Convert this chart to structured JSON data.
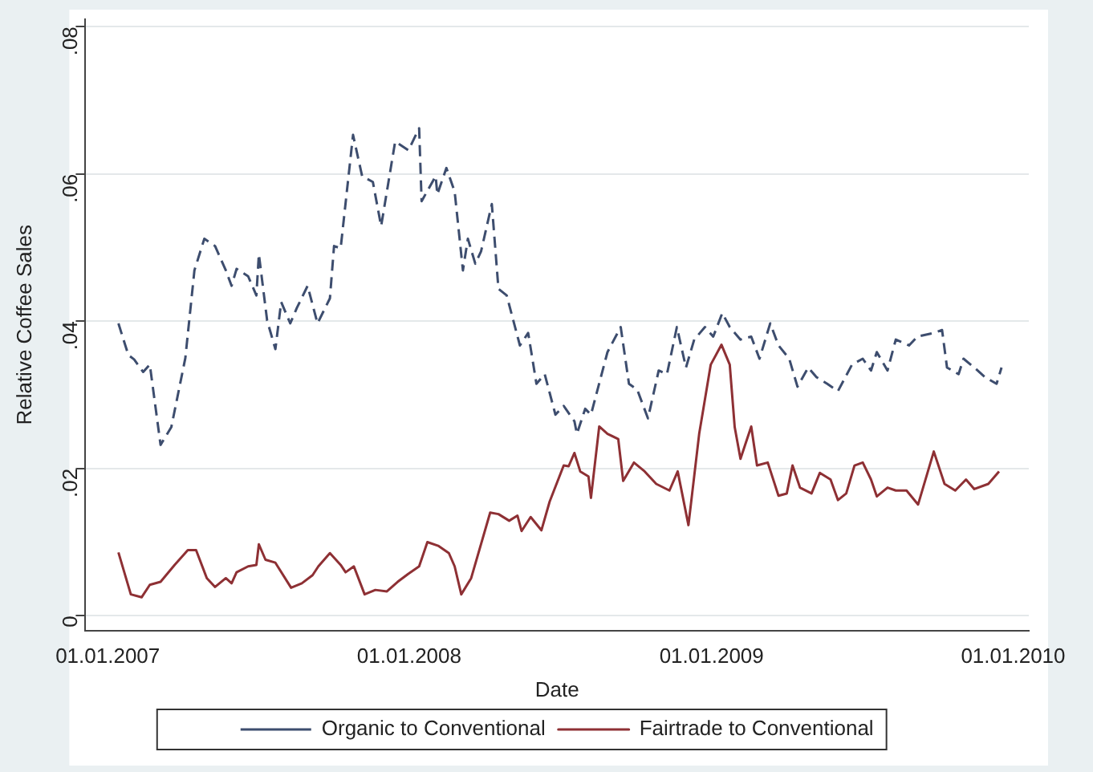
{
  "chart_data": {
    "type": "line",
    "xlabel": "Date",
    "ylabel": "Relative Coffee Sales",
    "xlim": [
      "2006-12-05",
      "2010-01-20"
    ],
    "ylim": [
      -0.002,
      0.081
    ],
    "xticks": [
      {
        "value": "2007-01-01",
        "label": "01.01.2007"
      },
      {
        "value": "2008-01-01",
        "label": "01.01.2008"
      },
      {
        "value": "2009-01-01",
        "label": "01.01.2009"
      },
      {
        "value": "2010-01-01",
        "label": "01.01.2010"
      }
    ],
    "yticks": [
      {
        "value": 0,
        "label": "0"
      },
      {
        "value": 0.02,
        "label": ".02"
      },
      {
        "value": 0.04,
        "label": ".04"
      },
      {
        "value": 0.06,
        "label": ".06"
      },
      {
        "value": 0.08,
        "label": ".08"
      }
    ],
    "grid": "y",
    "legend": "bottom",
    "marker": "none",
    "series": [
      {
        "name": "Organic to Conventional",
        "color": "#3d4d6e",
        "line_style": "dashed",
        "x": [
          "2007-01-14",
          "2007-01-26",
          "2007-02-02",
          "2007-02-13",
          "2007-02-21",
          "2007-03-06",
          "2007-03-19",
          "2007-04-05",
          "2007-04-16",
          "2007-04-28",
          "2007-05-11",
          "2007-05-24",
          "2007-05-31",
          "2007-06-06",
          "2007-06-20",
          "2007-06-30",
          "2007-07-03",
          "2007-07-13",
          "2007-07-23",
          "2007-07-30",
          "2007-08-10",
          "2007-08-18",
          "2007-08-31",
          "2007-09-12",
          "2007-09-27",
          "2007-10-02",
          "2007-10-10",
          "2007-10-25",
          "2007-11-05",
          "2007-11-18",
          "2007-11-28",
          "2007-12-15",
          "2007-12-31",
          "2008-01-13",
          "2008-01-16",
          "2008-02-02",
          "2008-02-04",
          "2008-02-15",
          "2008-02-25",
          "2008-03-06",
          "2008-03-12",
          "2008-03-21",
          "2008-03-28",
          "2008-04-10",
          "2008-04-18",
          "2008-04-28",
          "2008-05-14",
          "2008-05-24",
          "2008-06-03",
          "2008-06-13",
          "2008-06-26",
          "2008-07-06",
          "2008-07-19",
          "2008-07-22",
          "2008-08-01",
          "2008-08-08",
          "2008-08-28",
          "2008-09-13",
          "2008-09-23",
          "2008-10-03",
          "2008-10-16",
          "2008-10-29",
          "2008-11-08",
          "2008-11-20",
          "2008-12-01",
          "2008-12-11",
          "2008-12-24",
          "2009-01-03",
          "2009-01-14",
          "2009-01-23",
          "2009-02-05",
          "2009-02-18",
          "2009-02-28",
          "2009-03-13",
          "2009-03-23",
          "2009-04-05",
          "2009-04-15",
          "2009-04-28",
          "2009-05-08",
          "2009-05-21",
          "2009-06-03",
          "2009-06-20",
          "2009-07-03",
          "2009-07-13",
          "2009-07-20",
          "2009-08-02",
          "2009-08-12",
          "2009-08-28",
          "2009-09-07",
          "2009-09-27",
          "2009-10-07",
          "2009-10-13",
          "2009-10-27",
          "2009-11-02",
          "2009-11-15",
          "2009-11-28",
          "2009-12-12",
          "2009-12-18"
        ],
        "values": [
          0.0397,
          0.0354,
          0.0348,
          0.0331,
          0.0341,
          0.0232,
          0.0256,
          0.035,
          0.0469,
          0.0512,
          0.0502,
          0.0469,
          0.0448,
          0.0471,
          0.0461,
          0.0435,
          0.0491,
          0.0401,
          0.0362,
          0.0426,
          0.0397,
          0.0418,
          0.0448,
          0.0397,
          0.0431,
          0.0502,
          0.0499,
          0.0653,
          0.0597,
          0.0589,
          0.0529,
          0.0644,
          0.0632,
          0.0662,
          0.0563,
          0.0597,
          0.0572,
          0.0608,
          0.0576,
          0.0469,
          0.0512,
          0.0478,
          0.0495,
          0.0559,
          0.0444,
          0.0435,
          0.0367,
          0.0384,
          0.0315,
          0.0328,
          0.0273,
          0.0285,
          0.0264,
          0.0247,
          0.0281,
          0.0273,
          0.0358,
          0.0392,
          0.0315,
          0.0307,
          0.0268,
          0.0333,
          0.0328,
          0.0392,
          0.0337,
          0.0375,
          0.0392,
          0.0379,
          0.0411,
          0.0392,
          0.0375,
          0.0379,
          0.0349,
          0.0397,
          0.0367,
          0.0349,
          0.0311,
          0.0337,
          0.0324,
          0.0315,
          0.0305,
          0.0341,
          0.0349,
          0.0333,
          0.0358,
          0.0333,
          0.0375,
          0.0367,
          0.0379,
          0.0384,
          0.0388,
          0.0337,
          0.0328,
          0.0349,
          0.0337,
          0.0324,
          0.0315,
          0.0337
        ]
      },
      {
        "name": "Fairtrade to Conventional",
        "color": "#8e3034",
        "line_style": "solid",
        "x": [
          "2007-01-14",
          "2007-01-29",
          "2007-02-11",
          "2007-02-21",
          "2007-03-06",
          "2007-03-23",
          "2007-04-08",
          "2007-04-18",
          "2007-05-01",
          "2007-05-11",
          "2007-05-24",
          "2007-05-31",
          "2007-06-06",
          "2007-06-20",
          "2007-06-30",
          "2007-07-03",
          "2007-07-11",
          "2007-07-23",
          "2007-08-11",
          "2007-08-24",
          "2007-09-06",
          "2007-09-13",
          "2007-09-27",
          "2007-10-10",
          "2007-10-16",
          "2007-10-26",
          "2007-11-08",
          "2007-11-21",
          "2007-12-05",
          "2007-12-18",
          "2007-12-31",
          "2008-01-13",
          "2008-01-23",
          "2008-02-05",
          "2008-02-18",
          "2008-02-25",
          "2008-03-04",
          "2008-03-16",
          "2008-04-08",
          "2008-04-18",
          "2008-05-01",
          "2008-05-11",
          "2008-05-16",
          "2008-05-27",
          "2008-06-09",
          "2008-06-19",
          "2008-07-06",
          "2008-07-12",
          "2008-07-19",
          "2008-07-26",
          "2008-08-05",
          "2008-08-08",
          "2008-08-18",
          "2008-08-28",
          "2008-09-10",
          "2008-09-16",
          "2008-09-29",
          "2008-10-12",
          "2008-10-26",
          "2008-11-11",
          "2008-11-21",
          "2008-12-04",
          "2008-12-17",
          "2008-12-31",
          "2009-01-13",
          "2009-01-23",
          "2009-01-29",
          "2009-02-05",
          "2009-02-18",
          "2009-02-25",
          "2009-03-10",
          "2009-03-23",
          "2009-04-02",
          "2009-04-09",
          "2009-04-18",
          "2009-05-02",
          "2009-05-12",
          "2009-05-25",
          "2009-06-03",
          "2009-06-13",
          "2009-06-23",
          "2009-07-03",
          "2009-07-13",
          "2009-07-20",
          "2009-08-02",
          "2009-08-12",
          "2009-08-25",
          "2009-09-08",
          "2009-09-27",
          "2009-10-10",
          "2009-10-23",
          "2009-11-05",
          "2009-11-15",
          "2009-12-02",
          "2009-12-15"
        ],
        "values": [
          0.0086,
          0.0029,
          0.0025,
          0.0042,
          0.0046,
          0.0069,
          0.0089,
          0.0089,
          0.0051,
          0.0039,
          0.0051,
          0.0044,
          0.0059,
          0.0067,
          0.0069,
          0.0097,
          0.0076,
          0.0072,
          0.0038,
          0.0044,
          0.0055,
          0.0067,
          0.0085,
          0.0069,
          0.0059,
          0.0067,
          0.0029,
          0.0035,
          0.0033,
          0.0046,
          0.0057,
          0.0067,
          0.01,
          0.0095,
          0.0085,
          0.0067,
          0.0029,
          0.0051,
          0.014,
          0.0138,
          0.0129,
          0.0136,
          0.0115,
          0.0134,
          0.0116,
          0.0155,
          0.0204,
          0.0203,
          0.0221,
          0.0196,
          0.0189,
          0.016,
          0.0257,
          0.0247,
          0.024,
          0.0183,
          0.0208,
          0.0196,
          0.0179,
          0.017,
          0.0196,
          0.0123,
          0.0247,
          0.0341,
          0.0368,
          0.0341,
          0.0256,
          0.0213,
          0.0257,
          0.0204,
          0.0208,
          0.0163,
          0.0166,
          0.0204,
          0.0174,
          0.0166,
          0.0194,
          0.0185,
          0.0157,
          0.0166,
          0.0204,
          0.0208,
          0.0185,
          0.0162,
          0.0174,
          0.017,
          0.017,
          0.0151,
          0.0223,
          0.0179,
          0.017,
          0.0185,
          0.0172,
          0.0179,
          0.0196
        ]
      }
    ]
  }
}
